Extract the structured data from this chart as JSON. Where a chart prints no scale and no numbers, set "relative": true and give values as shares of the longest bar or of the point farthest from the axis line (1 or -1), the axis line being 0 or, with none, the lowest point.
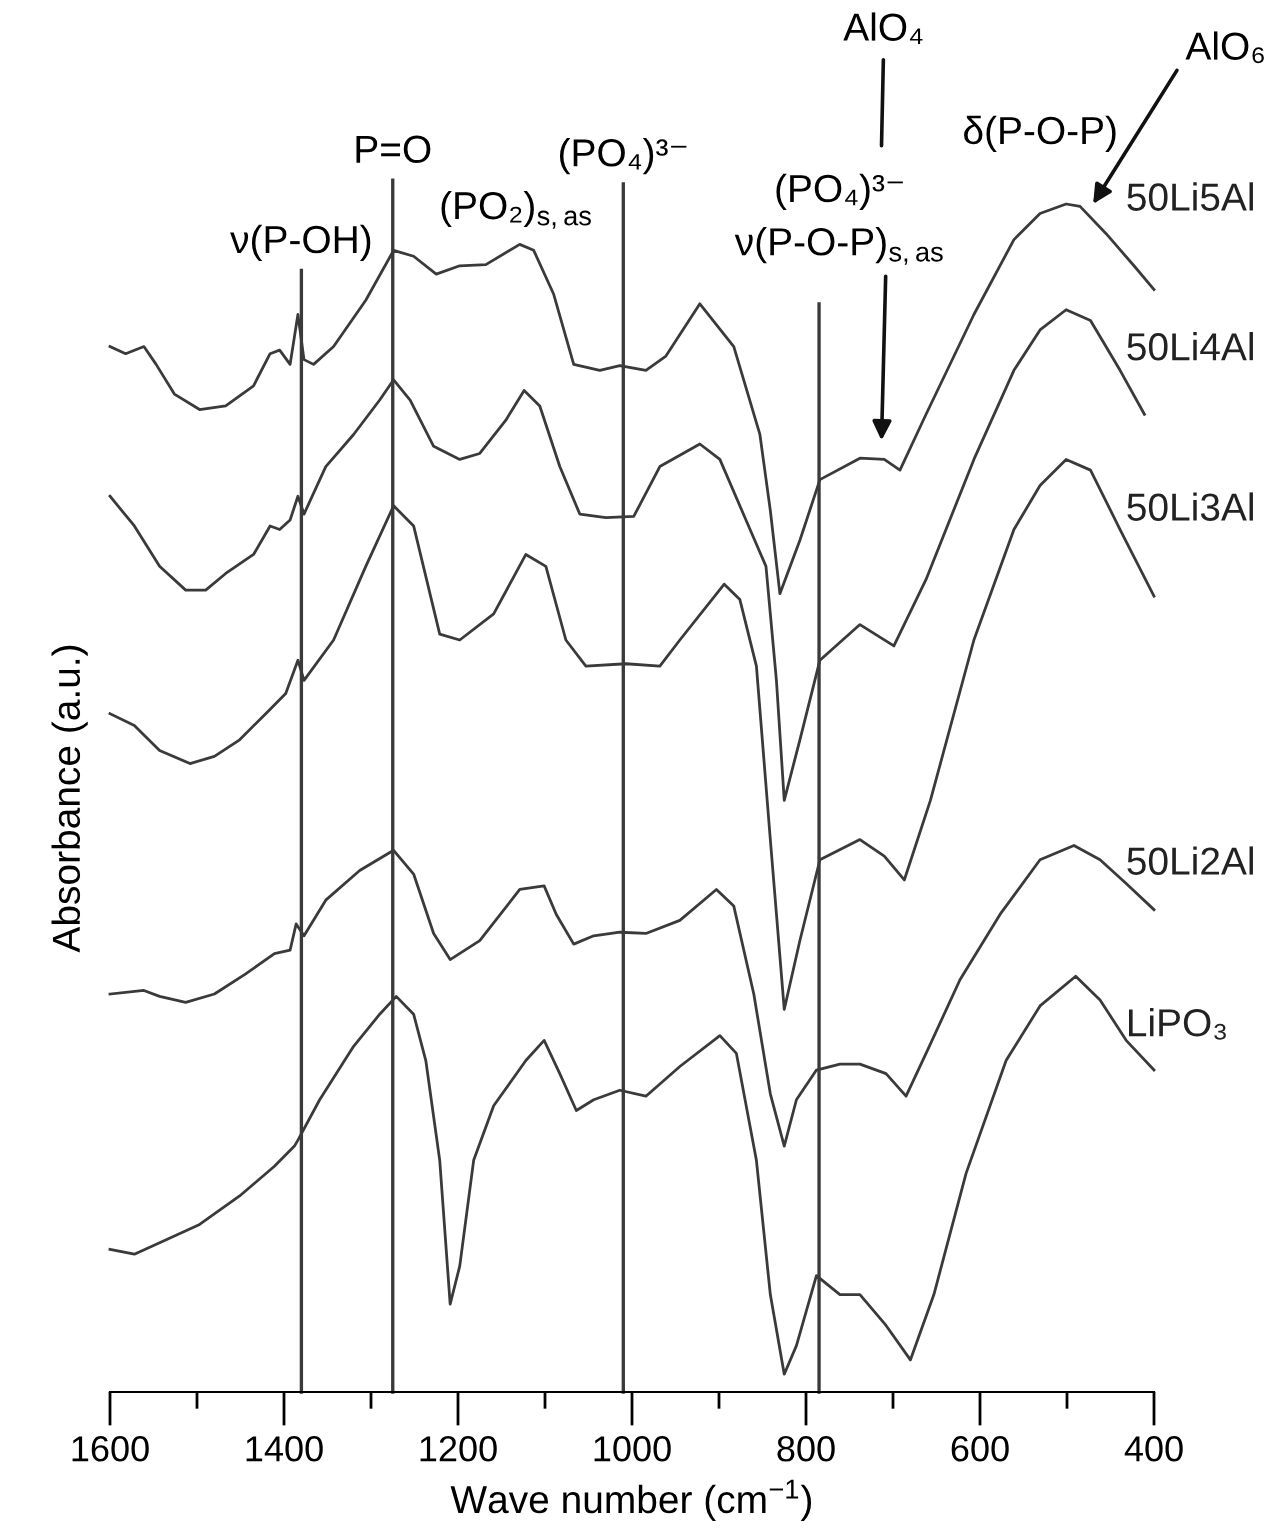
{
  "chart_data": {
    "type": "line",
    "relative": true,
    "xlabel": "Wave number (cm$^{−1}$)",
    "ylabel": "Absorbance (a.u.)",
    "xlim": [
      1600,
      400
    ],
    "xticks": [
      1600,
      {
        "value": 1500,
        "label": null
      },
      1400,
      {
        "value": 1300,
        "label": null
      },
      1200,
      {
        "value": 1100,
        "label": null
      },
      1000,
      {
        "value": 900,
        "label": null
      },
      800,
      {
        "value": 700,
        "label": null
      },
      600,
      {
        "value": 500,
        "label": null
      },
      400
    ],
    "series": [
      {
        "name": "50Li5Al",
        "color": "#3a3a3a",
        "x": [
          1600,
          1582,
          1561,
          1547,
          1526,
          1497,
          1467,
          1435,
          1416,
          1405,
          1393,
          1384,
          1377,
          1366,
          1343,
          1306,
          1274,
          1251,
          1225,
          1198,
          1168,
          1129,
          1113,
          1090,
          1067,
          1037,
          1014,
          984,
          961,
          922,
          883,
          853,
          841,
          830,
          807,
          784,
          738,
          710,
          692,
          662,
          607,
          561,
          531,
          501,
          485,
          455,
          423,
          400
        ],
        "values": [
          0.88,
          0.874,
          0.88,
          0.865,
          0.84,
          0.827,
          0.83,
          0.847,
          0.874,
          0.877,
          0.865,
          0.907,
          0.869,
          0.865,
          0.88,
          0.919,
          0.961,
          0.956,
          0.941,
          0.948,
          0.949,
          0.966,
          0.961,
          0.924,
          0.865,
          0.86,
          0.864,
          0.86,
          0.872,
          0.916,
          0.88,
          0.806,
          0.742,
          0.672,
          0.717,
          0.768,
          0.786,
          0.785,
          0.776,
          0.823,
          0.907,
          0.97,
          0.992,
          1.0,
          0.998,
          0.975,
          0.948,
          0.928
        ]
      },
      {
        "name": "50Li4Al",
        "color": "#3a3a3a",
        "x": [
          1600,
          1572,
          1543,
          1513,
          1490,
          1467,
          1435,
          1416,
          1405,
          1393,
          1384,
          1377,
          1352,
          1320,
          1290,
          1274,
          1255,
          1228,
          1198,
          1175,
          1145,
          1124,
          1106,
          1083,
          1060,
          1030,
          998,
          968,
          922,
          899,
          869,
          846,
          834,
          825,
          807,
          784,
          738,
          699,
          662,
          607,
          561,
          531,
          501,
          473,
          439,
          411
        ],
        "values": [
          0.754,
          0.729,
          0.695,
          0.675,
          0.675,
          0.689,
          0.705,
          0.729,
          0.726,
          0.734,
          0.754,
          0.739,
          0.779,
          0.806,
          0.835,
          0.852,
          0.835,
          0.796,
          0.785,
          0.79,
          0.818,
          0.843,
          0.83,
          0.779,
          0.739,
          0.736,
          0.737,
          0.779,
          0.798,
          0.785,
          0.734,
          0.695,
          0.599,
          0.498,
          0.549,
          0.616,
          0.646,
          0.628,
          0.684,
          0.785,
          0.86,
          0.894,
          0.911,
          0.902,
          0.86,
          0.823
        ]
      },
      {
        "name": "50Li3Al",
        "color": "#3a3a3a",
        "x": [
          1600,
          1572,
          1543,
          1508,
          1480,
          1451,
          1421,
          1398,
          1384,
          1377,
          1343,
          1306,
          1274,
          1251,
          1221,
          1198,
          1159,
          1122,
          1099,
          1076,
          1053,
          1007,
          968,
          945,
          894,
          876,
          857,
          841,
          825,
          807,
          784,
          738,
          710,
          687,
          657,
          607,
          561,
          531,
          501,
          473,
          439,
          400
        ],
        "values": [
          0.571,
          0.561,
          0.54,
          0.529,
          0.535,
          0.549,
          0.571,
          0.588,
          0.616,
          0.599,
          0.633,
          0.695,
          0.746,
          0.729,
          0.638,
          0.633,
          0.655,
          0.705,
          0.695,
          0.633,
          0.611,
          0.613,
          0.611,
          0.633,
          0.68,
          0.667,
          0.611,
          0.465,
          0.322,
          0.38,
          0.448,
          0.465,
          0.451,
          0.431,
          0.498,
          0.633,
          0.726,
          0.763,
          0.785,
          0.776,
          0.726,
          0.67
        ]
      },
      {
        "name": "50Li2Al",
        "color": "#3a3a3a",
        "x": [
          1600,
          1561,
          1543,
          1513,
          1480,
          1444,
          1411,
          1393,
          1386,
          1377,
          1352,
          1313,
          1274,
          1251,
          1228,
          1209,
          1175,
          1129,
          1101,
          1087,
          1067,
          1044,
          1014,
          984,
          945,
          903,
          883,
          860,
          841,
          825,
          811,
          788,
          761,
          738,
          708,
          685,
          662,
          623,
          577,
          531,
          492,
          462,
          432,
          400
        ],
        "values": [
          0.335,
          0.338,
          0.333,
          0.328,
          0.335,
          0.352,
          0.369,
          0.372,
          0.394,
          0.384,
          0.414,
          0.439,
          0.456,
          0.436,
          0.386,
          0.364,
          0.38,
          0.423,
          0.426,
          0.402,
          0.377,
          0.384,
          0.387,
          0.386,
          0.397,
          0.423,
          0.409,
          0.335,
          0.251,
          0.207,
          0.246,
          0.271,
          0.276,
          0.276,
          0.268,
          0.249,
          0.285,
          0.347,
          0.402,
          0.448,
          0.46,
          0.448,
          0.428,
          0.406
        ]
      },
      {
        "name": "LiPO₃",
        "color": "#3a3a3a",
        "x": [
          1600,
          1572,
          1536,
          1497,
          1451,
          1411,
          1388,
          1384,
          1359,
          1320,
          1290,
          1271,
          1251,
          1237,
          1221,
          1209,
          1198,
          1182,
          1159,
          1122,
          1101,
          1083,
          1064,
          1044,
          1014,
          984,
          945,
          899,
          880,
          857,
          841,
          825,
          811,
          788,
          761,
          738,
          708,
          680,
          653,
          616,
          570,
          531,
          490,
          462,
          432,
          400
        ],
        "values": [
          0.12,
          0.116,
          0.128,
          0.141,
          0.165,
          0.19,
          0.207,
          0.212,
          0.246,
          0.291,
          0.318,
          0.333,
          0.318,
          0.279,
          0.195,
          0.074,
          0.106,
          0.195,
          0.241,
          0.279,
          0.296,
          0.268,
          0.237,
          0.246,
          0.254,
          0.249,
          0.274,
          0.3,
          0.285,
          0.195,
          0.082,
          0.015,
          0.039,
          0.098,
          0.082,
          0.082,
          0.056,
          0.027,
          0.082,
          0.184,
          0.279,
          0.325,
          0.35,
          0.33,
          0.296,
          0.271
        ]
      }
    ],
    "ref_lines": [
      {
        "axis": "x",
        "value": 1380,
        "label": "ν(P-OH)",
        "color": "#3a3a3a"
      },
      {
        "axis": "x",
        "value": 1275,
        "label": "P=O",
        "color": "#3a3a3a"
      },
      {
        "axis": "x",
        "value": 1010,
        "label": "(PO₄)³⁻",
        "color": "#3a3a3a"
      },
      {
        "axis": "x",
        "value": 785,
        "color": "#3a3a3a"
      }
    ],
    "annotations": [
      "(PO₂)$_{s,as}$",
      "(PO₄)³⁻\nν(P-O-P)$_{s,as}$",
      "AlO₄",
      "δ(P-O-P)",
      {
        "text": "AlO₆",
        "x": 470,
        "y": 1.0
      }
    ]
  }
}
